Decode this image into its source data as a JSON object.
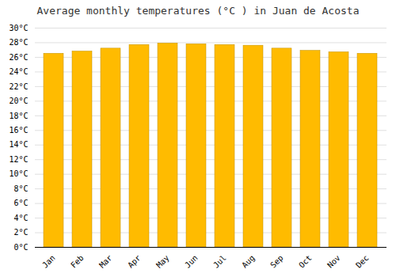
{
  "chart_data": {
    "type": "bar",
    "title": "Average monthly temperatures (°C ) in Juan de Acosta",
    "categories": [
      "Jan",
      "Feb",
      "Mar",
      "Apr",
      "May",
      "Jun",
      "Jul",
      "Aug",
      "Sep",
      "Oct",
      "Nov",
      "Dec"
    ],
    "values": [
      26.5,
      26.8,
      27.2,
      27.7,
      27.9,
      27.8,
      27.7,
      27.6,
      27.2,
      26.9,
      26.7,
      26.5
    ],
    "color": "#FFBB00",
    "ylim": [
      0,
      30
    ],
    "yticks": [
      {
        "value": 0,
        "label": "0°C"
      },
      {
        "value": 2,
        "label": "2°C"
      },
      {
        "value": 4,
        "label": "4°C"
      },
      {
        "value": 6,
        "label": "6°C"
      },
      {
        "value": 8,
        "label": "8°C"
      },
      {
        "value": 10,
        "label": "10°C"
      },
      {
        "value": 12,
        "label": "12°C"
      },
      {
        "value": 14,
        "label": "14°C"
      },
      {
        "value": 16,
        "label": "16°C"
      },
      {
        "value": 18,
        "label": "18°C"
      },
      {
        "value": 20,
        "label": "20°C"
      },
      {
        "value": 22,
        "label": "22°C"
      },
      {
        "value": 24,
        "label": "24°C"
      },
      {
        "value": 26,
        "label": "26°C"
      },
      {
        "value": 28,
        "label": "28°C"
      },
      {
        "value": 30,
        "label": "30°C"
      }
    ],
    "grid": true
  }
}
